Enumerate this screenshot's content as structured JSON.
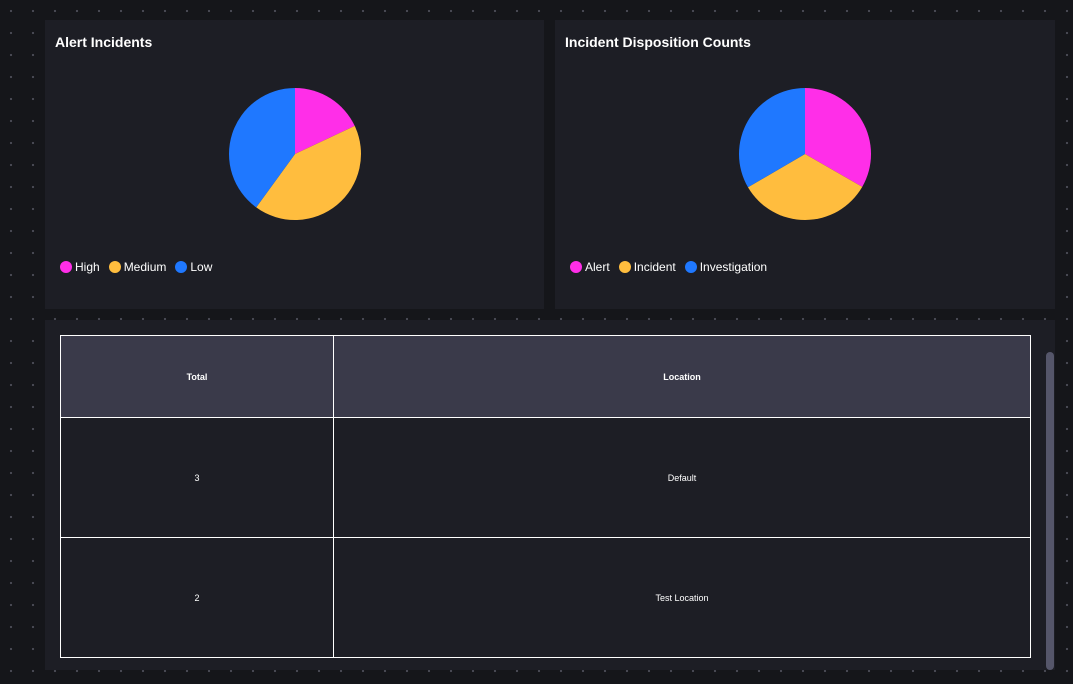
{
  "panels": {
    "alert_incidents": {
      "title": "Alert Incidents"
    },
    "incident_disposition": {
      "title": "Incident Disposition Counts"
    }
  },
  "chart_data": [
    {
      "type": "pie",
      "title": "Alert Incidents",
      "categories": [
        "High",
        "Medium",
        "Low"
      ],
      "values": [
        18,
        42,
        40
      ],
      "colors": [
        "#ff2ee8",
        "#ffbd3e",
        "#1f78ff"
      ],
      "legend": "bottom-left"
    },
    {
      "type": "pie",
      "title": "Incident Disposition Counts",
      "categories": [
        "Alert",
        "Incident",
        "Investigation"
      ],
      "values": [
        33.3,
        33.3,
        33.4
      ],
      "colors": [
        "#ff2ee8",
        "#ffbd3e",
        "#1f78ff"
      ],
      "legend": "bottom-left"
    }
  ],
  "table": {
    "headers": [
      "Total",
      "Location"
    ],
    "rows": [
      [
        "3",
        "Default"
      ],
      [
        "2",
        "Test Location"
      ]
    ]
  },
  "colors": {
    "background": "#15161a",
    "panel": "#1d1e25",
    "header": "#3a3a4a"
  }
}
